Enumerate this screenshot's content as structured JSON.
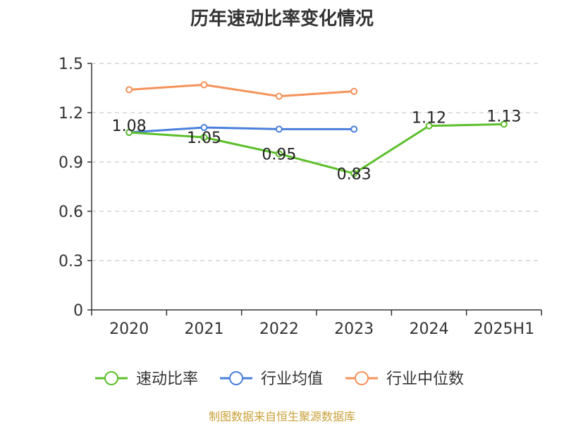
{
  "title": "历年速动比率变化情况",
  "source": "制图数据来自恒生聚源数据库",
  "chart_data": {
    "type": "line",
    "title": "历年速动比率变化情况",
    "categories": [
      "2020",
      "2021",
      "2022",
      "2023",
      "2024",
      "2025H1"
    ],
    "y_ticks": [
      "0",
      "0.3",
      "0.6",
      "0.9",
      "1.2",
      "1.5"
    ],
    "ylim": [
      0,
      1.5
    ],
    "grid": true,
    "legend_position": "bottom",
    "series": [
      {
        "name": "速动比率",
        "color": "#5cbf2a",
        "values": [
          1.08,
          1.05,
          0.95,
          0.83,
          1.12,
          1.13
        ],
        "labels": [
          "1.08",
          "1.05",
          "0.95",
          "0.83",
          "1.12",
          "1.13"
        ]
      },
      {
        "name": "行业均值",
        "color": "#4a7fdc",
        "values": [
          1.08,
          1.11,
          1.1,
          1.1,
          null,
          null
        ]
      },
      {
        "name": "行业中位数",
        "color": "#f5925a",
        "values": [
          1.34,
          1.37,
          1.3,
          1.33,
          null,
          null
        ]
      }
    ]
  }
}
